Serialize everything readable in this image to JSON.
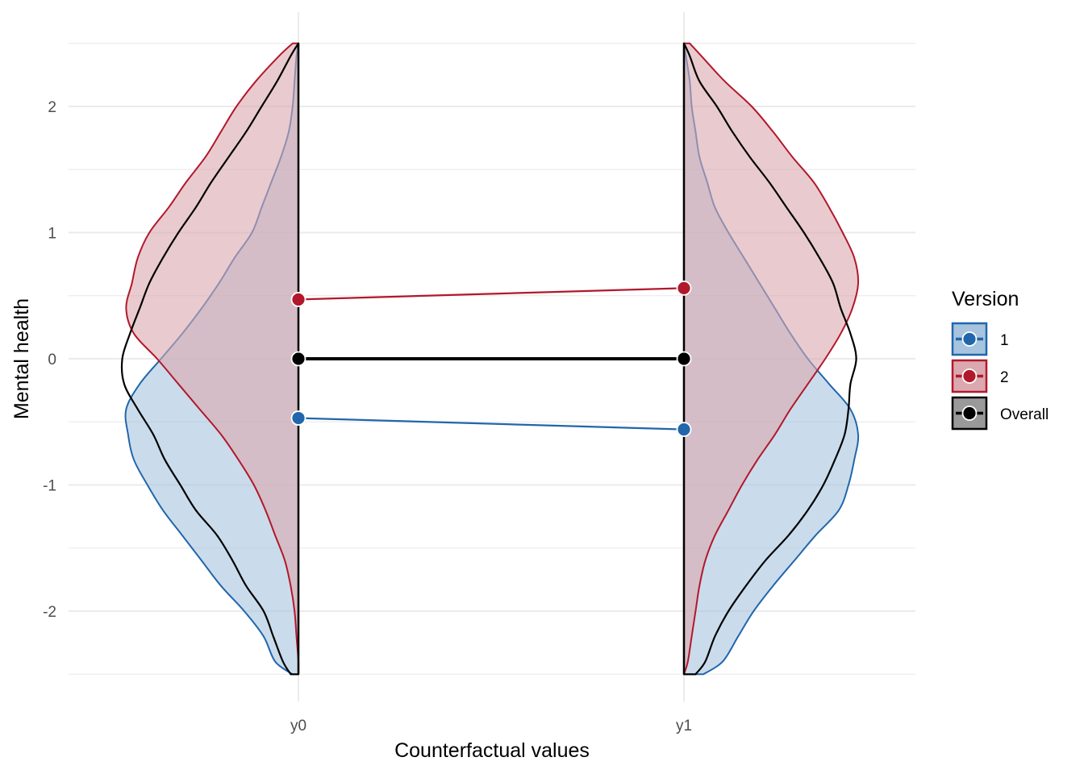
{
  "chart_data": {
    "type": "violin",
    "title": "",
    "xlabel": "Counterfactual values",
    "ylabel": "Mental health",
    "categories": [
      "y0",
      "y1"
    ],
    "ylim": [
      -2.5,
      2.5
    ],
    "y_ticks": [
      -2,
      -1,
      0,
      1,
      2
    ],
    "y_tick_labels": [
      "-2",
      "-1",
      "0",
      "1",
      "2"
    ],
    "grid": true,
    "legend": {
      "title": "Version",
      "position": "right",
      "items": [
        {
          "label": "1",
          "color": "#2166ac",
          "fill": "#a6c4dd"
        },
        {
          "label": "2",
          "color": "#b2182b",
          "fill": "#dba8af"
        },
        {
          "label": "Overall",
          "color": "#000000",
          "fill": "#999999"
        }
      ]
    },
    "means": [
      {
        "name": "1",
        "color": "#2166ac",
        "values": [
          -0.47,
          -0.56
        ]
      },
      {
        "name": "2",
        "color": "#b2182b",
        "values": [
          0.47,
          0.56
        ]
      },
      {
        "name": "Overall",
        "color": "#000000",
        "values": [
          0.0,
          0.0
        ]
      }
    ],
    "densities": {
      "y0": {
        "side": "left",
        "series": [
          {
            "name": "1",
            "color": "#2166ac",
            "fill": "#a6c4dd",
            "y": [
              -2.5,
              -2.4,
              -2.2,
              -2.0,
              -1.8,
              -1.6,
              -1.4,
              -1.2,
              -1.0,
              -0.8,
              -0.6,
              -0.4,
              -0.2,
              0.0,
              0.2,
              0.4,
              0.6,
              0.8,
              1.0,
              1.2,
              1.4,
              1.6,
              1.8,
              2.0,
              2.2,
              2.4,
              2.5
            ],
            "width": [
              0.03,
              0.12,
              0.18,
              0.28,
              0.4,
              0.5,
              0.6,
              0.7,
              0.78,
              0.85,
              0.88,
              0.89,
              0.82,
              0.71,
              0.6,
              0.5,
              0.41,
              0.33,
              0.24,
              0.19,
              0.14,
              0.09,
              0.05,
              0.03,
              0.02,
              0.01,
              0.0
            ]
          },
          {
            "name": "2",
            "color": "#b2182b",
            "fill": "#dba8af",
            "y": [
              -2.5,
              -2.4,
              -2.2,
              -2.0,
              -1.8,
              -1.6,
              -1.4,
              -1.2,
              -1.0,
              -0.8,
              -0.6,
              -0.4,
              -0.2,
              0.0,
              0.2,
              0.4,
              0.6,
              0.8,
              1.0,
              1.2,
              1.4,
              1.6,
              1.8,
              2.0,
              2.2,
              2.4,
              2.5
            ],
            "width": [
              0.0,
              0.0,
              0.01,
              0.02,
              0.04,
              0.07,
              0.12,
              0.17,
              0.23,
              0.31,
              0.4,
              0.51,
              0.62,
              0.73,
              0.85,
              0.89,
              0.86,
              0.83,
              0.77,
              0.67,
              0.58,
              0.48,
              0.4,
              0.32,
              0.22,
              0.1,
              0.03
            ]
          },
          {
            "name": "Overall",
            "color": "#000000",
            "fill": "none",
            "y": [
              -2.5,
              -2.4,
              -2.2,
              -2.0,
              -1.8,
              -1.6,
              -1.4,
              -1.2,
              -1.0,
              -0.8,
              -0.6,
              -0.4,
              -0.2,
              0.0,
              0.2,
              0.4,
              0.6,
              0.8,
              1.0,
              1.2,
              1.4,
              1.6,
              1.8,
              2.0,
              2.2,
              2.4,
              2.5
            ],
            "width": [
              0.04,
              0.08,
              0.13,
              0.18,
              0.27,
              0.34,
              0.42,
              0.53,
              0.61,
              0.69,
              0.75,
              0.83,
              0.9,
              0.91,
              0.87,
              0.82,
              0.77,
              0.7,
              0.62,
              0.53,
              0.45,
              0.36,
              0.27,
              0.19,
              0.11,
              0.04,
              0.0
            ]
          }
        ]
      },
      "y1": {
        "side": "right",
        "series": [
          {
            "name": "1",
            "color": "#2166ac",
            "fill": "#a6c4dd",
            "y": [
              -2.5,
              -2.4,
              -2.2,
              -2.0,
              -1.8,
              -1.6,
              -1.4,
              -1.2,
              -1.0,
              -0.8,
              -0.6,
              -0.4,
              -0.2,
              0.0,
              0.2,
              0.4,
              0.6,
              0.8,
              1.0,
              1.2,
              1.4,
              1.6,
              1.8,
              2.0,
              2.2,
              2.4,
              2.5
            ],
            "width": [
              0.1,
              0.2,
              0.28,
              0.36,
              0.46,
              0.57,
              0.68,
              0.8,
              0.85,
              0.88,
              0.9,
              0.86,
              0.75,
              0.64,
              0.55,
              0.47,
              0.39,
              0.31,
              0.23,
              0.16,
              0.12,
              0.08,
              0.06,
              0.04,
              0.03,
              0.01,
              0.0
            ]
          },
          {
            "name": "2",
            "color": "#b2182b",
            "fill": "#dba8af",
            "y": [
              -2.5,
              -2.4,
              -2.2,
              -2.0,
              -1.8,
              -1.6,
              -1.4,
              -1.2,
              -1.0,
              -0.8,
              -0.6,
              -0.4,
              -0.2,
              0.0,
              0.2,
              0.4,
              0.6,
              0.8,
              1.0,
              1.2,
              1.4,
              1.6,
              1.8,
              2.0,
              2.2,
              2.4,
              2.5
            ],
            "width": [
              0.0,
              0.02,
              0.04,
              0.06,
              0.08,
              0.11,
              0.16,
              0.23,
              0.3,
              0.38,
              0.47,
              0.55,
              0.64,
              0.73,
              0.81,
              0.87,
              0.9,
              0.88,
              0.82,
              0.75,
              0.67,
              0.56,
              0.46,
              0.35,
              0.21,
              0.09,
              0.03
            ]
          },
          {
            "name": "Overall",
            "color": "#000000",
            "fill": "none",
            "y": [
              -2.5,
              -2.4,
              -2.2,
              -2.0,
              -1.8,
              -1.6,
              -1.4,
              -1.2,
              -1.0,
              -0.8,
              -0.6,
              -0.4,
              -0.2,
              0.0,
              0.2,
              0.4,
              0.6,
              0.8,
              1.0,
              1.2,
              1.4,
              1.6,
              1.8,
              2.0,
              2.2,
              2.4,
              2.5
            ],
            "width": [
              0.06,
              0.11,
              0.16,
              0.23,
              0.32,
              0.42,
              0.54,
              0.64,
              0.72,
              0.78,
              0.83,
              0.85,
              0.86,
              0.89,
              0.86,
              0.81,
              0.77,
              0.7,
              0.62,
              0.53,
              0.44,
              0.34,
              0.25,
              0.17,
              0.08,
              0.03,
              0.0
            ]
          }
        ]
      }
    }
  }
}
